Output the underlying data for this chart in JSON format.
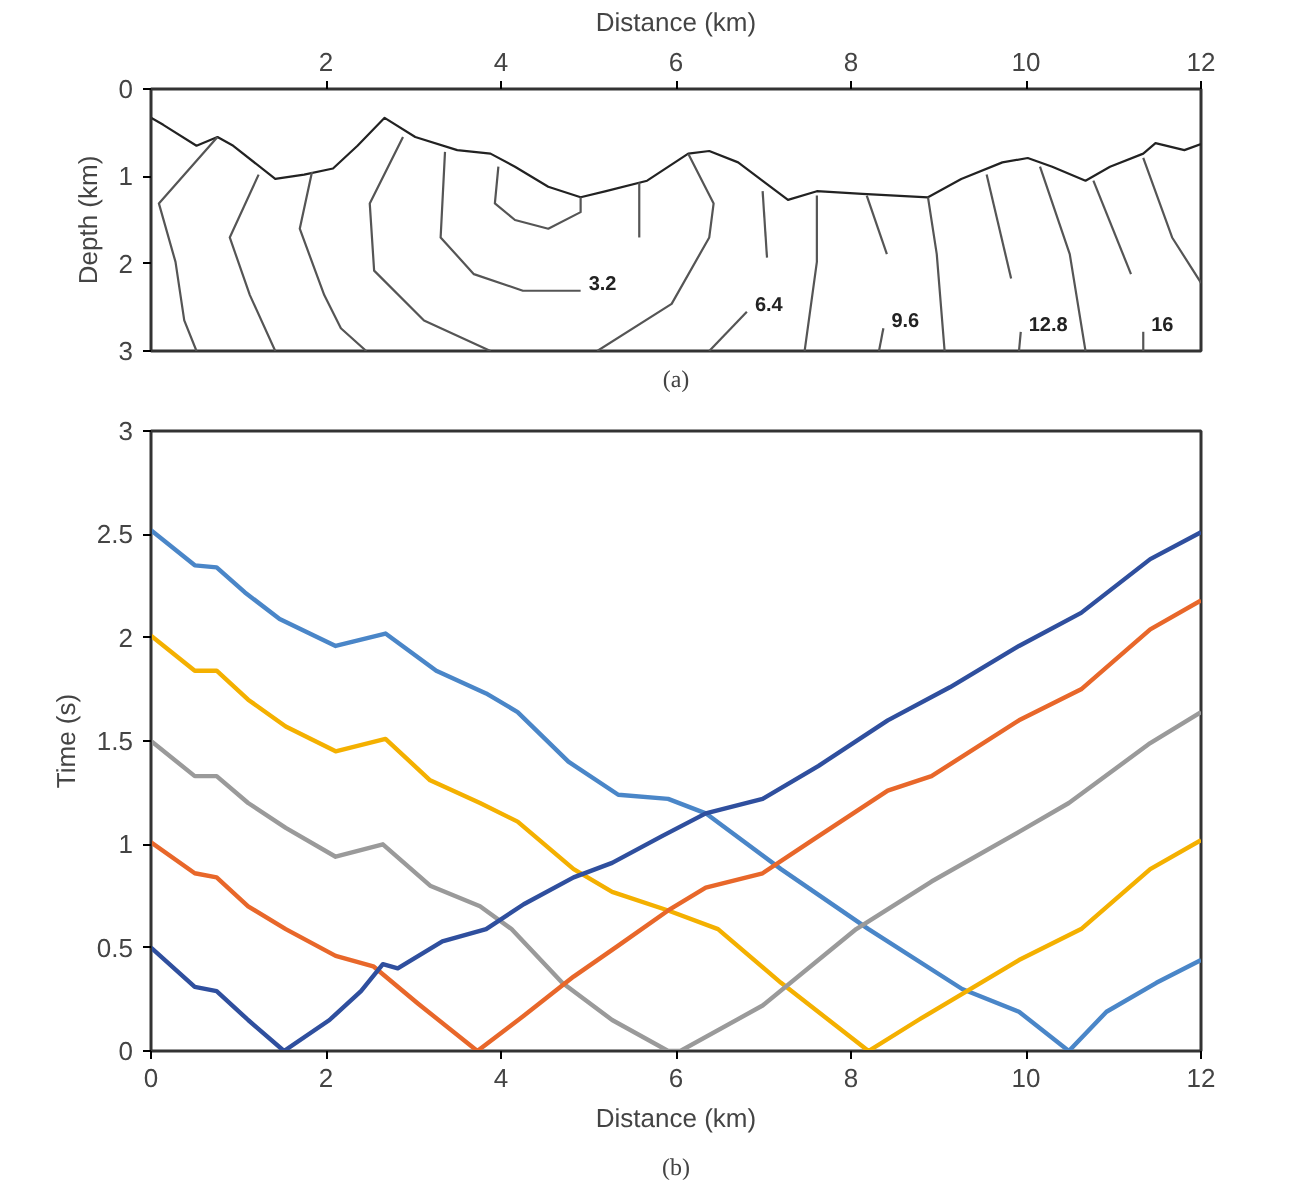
{
  "chart_data": [
    {
      "type": "line",
      "xlabel": "Distance (km)",
      "ylabel": "Depth (km)",
      "xlim": [
        0,
        12
      ],
      "xticks": [
        2,
        4,
        6,
        8,
        10,
        12
      ],
      "ylim": [
        3,
        0
      ],
      "yticks": [
        0,
        1,
        2,
        3
      ],
      "series": [
        {
          "color": "#222222",
          "x": [
            0,
            0.14,
            0.52,
            0.76,
            0.94,
            1.42,
            1.75,
            2.08,
            2.36,
            2.67,
            3.02,
            3.5,
            3.88,
            4.16,
            4.54,
            4.91,
            5.2,
            5.67,
            6.14,
            6.38,
            6.71,
            7.28,
            7.61,
            8.13,
            8.88,
            9.26,
            9.73,
            10.02,
            10.3,
            10.68,
            10.96,
            11.34,
            11.48,
            11.81,
            12
          ],
          "values": [
            0.33,
            0.41,
            0.65,
            0.55,
            0.65,
            1.03,
            0.98,
            0.91,
            0.65,
            0.33,
            0.55,
            0.7,
            0.74,
            0.89,
            1.12,
            1.24,
            1.17,
            1.05,
            0.74,
            0.71,
            0.84,
            1.27,
            1.17,
            1.2,
            1.24,
            1.03,
            0.84,
            0.79,
            0.89,
            1.05,
            0.89,
            0.74,
            0.62,
            0.7,
            0.63
          ]
        },
        {
          "color": "#555555",
          "x": [
            3.97,
            3.93,
            4.16,
            4.54,
            4.91,
            4.91
          ],
          "values": [
            0.89,
            1.31,
            1.5,
            1.6,
            1.41,
            1.24
          ]
        },
        {
          "name": "3.2",
          "color": "#555555",
          "x": [
            3.36,
            3.31,
            3.69,
            4.25,
            4.91
          ],
          "values": [
            0.72,
            1.7,
            2.12,
            2.31,
            2.31
          ]
        },
        {
          "color": "#555555",
          "x": [
            2.88,
            2.5,
            2.55,
            3.12,
            3.88
          ],
          "values": [
            0.55,
            1.31,
            2.08,
            2.65,
            3
          ]
        },
        {
          "color": "#555555",
          "x": [
            5.1,
            5.95,
            6.38,
            6.43,
            6.14
          ],
          "values": [
            3,
            2.46,
            1.7,
            1.31,
            0.74
          ]
        },
        {
          "color": "#555555",
          "x": [
            5.58,
            5.58
          ],
          "values": [
            1.07,
            1.7
          ]
        },
        {
          "color": "#555555",
          "x": [
            1.84,
            1.7,
            1.98,
            2.17,
            2.46
          ],
          "values": [
            0.95,
            1.6,
            2.36,
            2.74,
            3
          ]
        },
        {
          "color": "#555555",
          "x": [
            1.23,
            0.9,
            1.13,
            1.42
          ],
          "values": [
            0.98,
            1.7,
            2.36,
            3
          ]
        },
        {
          "color": "#555555",
          "x": [
            0.76,
            0.09,
            0.28,
            0.38,
            0.52
          ],
          "values": [
            0.55,
            1.31,
            1.98,
            2.65,
            3
          ]
        },
        {
          "color": "#555555",
          "x": [
            6.99,
            7.04
          ],
          "values": [
            1.17,
            1.93
          ]
        },
        {
          "name": "6.4",
          "color": "#555555",
          "x": [
            6.38,
            6.81
          ],
          "values": [
            3,
            2.55
          ]
        },
        {
          "color": "#555555",
          "x": [
            7.61,
            7.61,
            7.47
          ],
          "values": [
            1.22,
            1.98,
            3
          ]
        },
        {
          "color": "#555555",
          "x": [
            8.18,
            8.41
          ],
          "values": [
            1.22,
            1.89
          ]
        },
        {
          "name": "9.6",
          "color": "#555555",
          "x": [
            8.32,
            8.37
          ],
          "values": [
            3,
            2.74
          ]
        },
        {
          "color": "#555555",
          "x": [
            8.88,
            8.98,
            9.07
          ],
          "values": [
            1.24,
            1.89,
            3
          ]
        },
        {
          "color": "#555555",
          "x": [
            9.55,
            9.83
          ],
          "values": [
            0.98,
            2.17
          ]
        },
        {
          "name": "12.8",
          "color": "#555555",
          "x": [
            9.92,
            9.94
          ],
          "values": [
            3,
            2.78
          ]
        },
        {
          "color": "#555555",
          "x": [
            10.16,
            10.5,
            10.68
          ],
          "values": [
            0.89,
            1.89,
            3
          ]
        },
        {
          "color": "#555555",
          "x": [
            10.77,
            11.2
          ],
          "values": [
            1.05,
            2.12
          ]
        },
        {
          "name": "16",
          "color": "#555555",
          "x": [
            11.34,
            11.34
          ],
          "values": [
            3,
            2.78
          ]
        },
        {
          "color": "#555555",
          "x": [
            11.34,
            11.67,
            12
          ],
          "values": [
            0.79,
            1.7,
            2.22
          ]
        }
      ],
      "annotations": [
        "(a)"
      ]
    },
    {
      "type": "line",
      "xlabel": "Distance (km)",
      "ylabel": "Time (s)",
      "xlim": [
        0,
        12
      ],
      "xticks": [
        0,
        2,
        4,
        6,
        8,
        10,
        12
      ],
      "ylim": [
        0,
        3
      ],
      "yticks": [
        0,
        0.5,
        1,
        1.5,
        2,
        2.5,
        3
      ],
      "series": [
        {
          "color": "#4a86c8",
          "x": [
            0,
            0.5,
            0.75,
            1.07,
            1.47,
            2.11,
            2.68,
            3.26,
            3.83,
            4.19,
            4.77,
            5.34,
            5.91,
            6.34,
            7.2,
            8.2,
            9.27,
            9.92,
            10.49,
            10.92,
            11.49,
            12
          ],
          "values": [
            2.52,
            2.35,
            2.34,
            2.22,
            2.09,
            1.96,
            2.02,
            1.84,
            1.73,
            1.64,
            1.4,
            1.24,
            1.22,
            1.15,
            0.88,
            0.59,
            0.3,
            0.19,
            0,
            0.19,
            0.33,
            0.44
          ]
        },
        {
          "color": "#f4b000",
          "x": [
            0,
            0.5,
            0.75,
            1.11,
            1.54,
            2.11,
            2.68,
            3.19,
            3.76,
            4.19,
            4.83,
            5.27,
            5.91,
            6.48,
            7.2,
            8.2,
            8.77,
            9.92,
            10.63,
            11.42,
            12
          ],
          "values": [
            2.01,
            1.84,
            1.84,
            1.7,
            1.57,
            1.45,
            1.51,
            1.31,
            1.2,
            1.11,
            0.88,
            0.77,
            0.68,
            0.59,
            0.33,
            0,
            0.15,
            0.44,
            0.59,
            0.88,
            1.02
          ]
        },
        {
          "color": "#9a9a9a",
          "x": [
            0,
            0.5,
            0.75,
            1.11,
            1.54,
            2.11,
            2.65,
            3.19,
            3.76,
            4.12,
            4.7,
            5.27,
            5.91,
            6.05,
            6.99,
            8.06,
            8.92,
            9.92,
            10.49,
            11.42,
            12
          ],
          "values": [
            1.5,
            1.33,
            1.33,
            1.2,
            1.08,
            0.94,
            1,
            0.8,
            0.7,
            0.59,
            0.33,
            0.15,
            0,
            0,
            0.22,
            0.59,
            0.82,
            1.06,
            1.2,
            1.49,
            1.64
          ]
        },
        {
          "color": "#e8672a",
          "x": [
            0,
            0.5,
            0.75,
            1.11,
            1.54,
            2.11,
            2.54,
            3.05,
            3.73,
            4.26,
            4.83,
            5.34,
            5.91,
            6.34,
            6.99,
            7.56,
            8.42,
            8.92,
            9.92,
            10.63,
            11.42,
            12
          ],
          "values": [
            1.01,
            0.86,
            0.84,
            0.7,
            0.59,
            0.46,
            0.41,
            0.23,
            0,
            0.17,
            0.36,
            0.51,
            0.68,
            0.79,
            0.86,
            1.02,
            1.26,
            1.33,
            1.6,
            1.75,
            2.04,
            2.18
          ]
        },
        {
          "color": "#2f4f9e",
          "x": [
            0,
            0.5,
            0.75,
            1.11,
            1.52,
            2.04,
            2.4,
            2.65,
            2.82,
            3.33,
            3.83,
            4.26,
            4.83,
            5.27,
            5.84,
            6.34,
            6.99,
            7.63,
            8.42,
            9.13,
            9.92,
            10.63,
            11.42,
            12
          ],
          "values": [
            0.5,
            0.31,
            0.29,
            0.15,
            0,
            0.15,
            0.29,
            0.42,
            0.4,
            0.53,
            0.59,
            0.71,
            0.84,
            0.91,
            1.04,
            1.15,
            1.22,
            1.38,
            1.6,
            1.76,
            1.96,
            2.12,
            2.38,
            2.51
          ]
        }
      ],
      "annotations": [
        "(b)"
      ]
    }
  ]
}
